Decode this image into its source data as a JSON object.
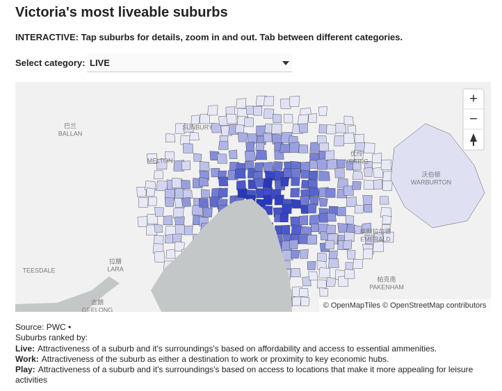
{
  "header": {
    "title": "Victoria's most liveable suburbs",
    "subtitle": "INTERACTIVE: Tap suburbs for details, zoom in and out. Tab between different categories."
  },
  "selector": {
    "label": "Select category:",
    "selected": "LIVE"
  },
  "map": {
    "labels": [
      {
        "text": "巴兰",
        "sub": "BALLAN"
      },
      {
        "text": "SUNBURY"
      },
      {
        "text": "MELTON"
      },
      {
        "text": "优伶",
        "sub": "YERING"
      },
      {
        "text": "沃伯顿",
        "sub": "WARBURTON"
      },
      {
        "text": "埃默拉尔德",
        "sub": "EMERALD"
      },
      {
        "text": "拉腊",
        "sub": "LARA"
      },
      {
        "text": "TEESDALE"
      },
      {
        "text": "吉朗",
        "sub": "GEELONG"
      },
      {
        "text": "帕克南",
        "sub": "PAKENHAM"
      }
    ],
    "zoom_in": "+",
    "zoom_out": "−",
    "attribution": "© OpenMapTiles © OpenStreetMap contributors"
  },
  "footer": {
    "source": "Source: PWC •",
    "ranked": "Suburbs ranked by:",
    "notes": [
      {
        "label": "Live:",
        "text": "Attractiveness of a suburb and it's surroundings's based on affordability and access to essential ammenities."
      },
      {
        "label": "Work:",
        "text": "Attractiveness of the suburb as either a destination to work or proximity to key economic hubs."
      },
      {
        "label": "Play:",
        "text": "Attractiveness of a suburb and it's surroundings's based on access to locations that make it more appealing for leisure activities"
      }
    ]
  }
}
